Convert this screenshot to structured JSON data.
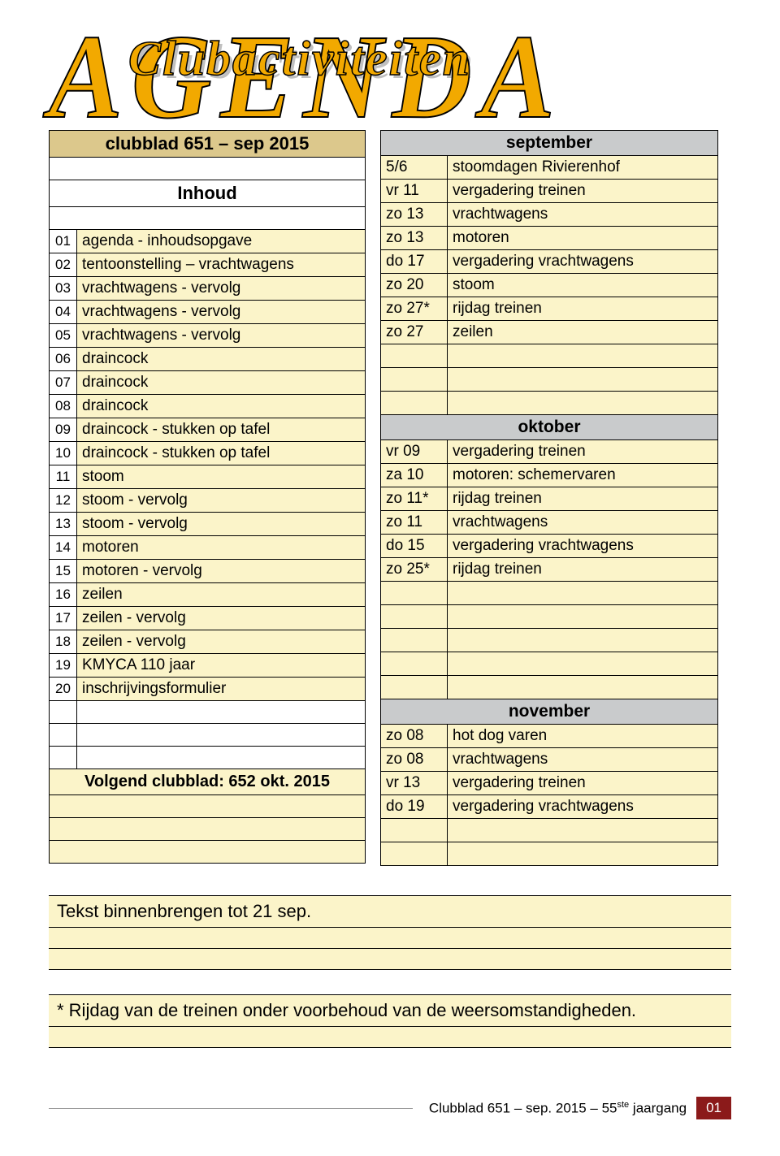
{
  "header": {
    "agenda": "AGENDA",
    "subtitle": "Clubactiviteiten"
  },
  "left": {
    "title": "clubblad 651 – sep 2015",
    "inhoud": "Inhoud",
    "rows": [
      {
        "n": "01",
        "t": "agenda - inhoudsopgave"
      },
      {
        "n": "02",
        "t": "tentoonstelling – vrachtwagens"
      },
      {
        "n": "03",
        "t": "vrachtwagens - vervolg"
      },
      {
        "n": "04",
        "t": "vrachtwagens - vervolg"
      },
      {
        "n": "05",
        "t": "vrachtwagens - vervolg"
      },
      {
        "n": "06",
        "t": "draincock"
      },
      {
        "n": "07",
        "t": "draincock"
      },
      {
        "n": "08",
        "t": "draincock"
      },
      {
        "n": "09",
        "t": "draincock - stukken op tafel"
      },
      {
        "n": "10",
        "t": "draincock - stukken op tafel"
      },
      {
        "n": "11",
        "t": "stoom"
      },
      {
        "n": "12",
        "t": "stoom - vervolg"
      },
      {
        "n": "13",
        "t": "stoom - vervolg"
      },
      {
        "n": "14",
        "t": "motoren"
      },
      {
        "n": "15",
        "t": "motoren - vervolg"
      },
      {
        "n": "16",
        "t": "zeilen"
      },
      {
        "n": "17",
        "t": "zeilen - vervolg"
      },
      {
        "n": "18",
        "t": "zeilen - vervolg"
      },
      {
        "n": "19",
        "t": "KMYCA 110 jaar"
      },
      {
        "n": "20",
        "t": "inschrijvingsformulier"
      }
    ],
    "next": "Volgend clubblad: 652 okt. 2015"
  },
  "right": [
    {
      "type": "month",
      "label": "september"
    },
    {
      "a": "5/6",
      "b": "stoomdagen Rivierenhof"
    },
    {
      "a": "vr 11",
      "b": "vergadering treinen"
    },
    {
      "a": "zo 13",
      "b": "vrachtwagens"
    },
    {
      "a": "zo 13",
      "b": "motoren"
    },
    {
      "a": "do 17",
      "b": "vergadering vrachtwagens"
    },
    {
      "a": "zo 20",
      "b": "stoom"
    },
    {
      "a": "zo 27*",
      "b": "rijdag treinen"
    },
    {
      "a": "zo 27",
      "b": "zeilen"
    },
    {
      "type": "blank"
    },
    {
      "type": "blank"
    },
    {
      "type": "blank"
    },
    {
      "type": "month",
      "label": "oktober"
    },
    {
      "a": "vr 09",
      "b": "vergadering treinen"
    },
    {
      "a": "za 10",
      "b": "motoren: schemervaren"
    },
    {
      "a": "zo 11*",
      "b": "rijdag treinen"
    },
    {
      "a": "zo 11",
      "b": "vrachtwagens"
    },
    {
      "a": "do 15",
      "b": "vergadering vrachtwagens"
    },
    {
      "a": "zo 25*",
      "b": "rijdag treinen"
    },
    {
      "type": "blank"
    },
    {
      "type": "blank"
    },
    {
      "type": "blank"
    },
    {
      "type": "blank"
    },
    {
      "type": "blank"
    },
    {
      "type": "month",
      "label": "november"
    },
    {
      "a": "zo 08",
      "b": "hot dog varen"
    },
    {
      "a": "zo 08",
      "b": "vrachtwagens"
    },
    {
      "a": "vr 13",
      "b": "vergadering treinen"
    },
    {
      "a": "do 19",
      "b": "vergadering vrachtwagens"
    },
    {
      "type": "blank"
    },
    {
      "type": "blank"
    }
  ],
  "note1": "Tekst binnenbrengen tot 21 sep.",
  "note2": "* Rijdag van de treinen onder voorbehoud van de weersomstandigheden.",
  "footer": {
    "text_a": "Clubblad  651 – sep. 2015 – 55",
    "text_sup": "ste",
    "text_b": " jaargang",
    "page": "01"
  },
  "colors": {
    "cream": "#fbf4c9",
    "khaki": "#dcc88c",
    "grey": "#c9cbcc",
    "gold": "#f2a900",
    "badge": "#8b1a1a"
  }
}
